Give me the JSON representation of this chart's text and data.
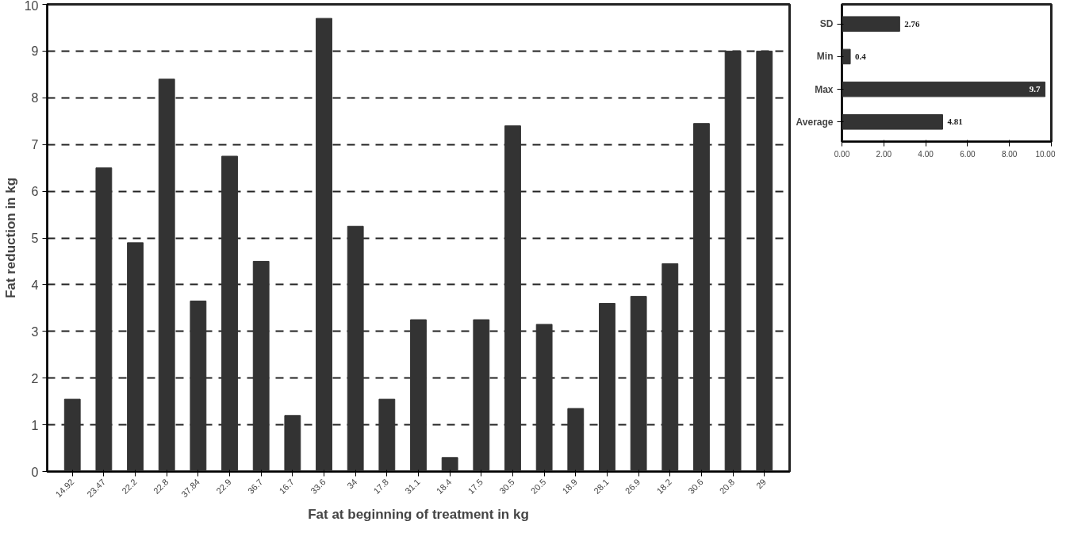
{
  "chart_data": [
    {
      "type": "bar",
      "xlabel": "Fat at beginning of treatment in kg",
      "ylabel": "Fat reduction in kg",
      "categories": [
        "14.92",
        "23.47",
        "22.2",
        "22.8",
        "37.84",
        "22.9",
        "36.7",
        "16.7",
        "33.6",
        "34",
        "17.8",
        "31.1",
        "18.4",
        "17.5",
        "30.5",
        "20.5",
        "18.9",
        "28.1",
        "26.9",
        "18.2",
        "30.6",
        "20.8",
        "29"
      ],
      "values": [
        1.55,
        6.5,
        4.9,
        8.4,
        3.65,
        6.75,
        4.5,
        1.2,
        9.7,
        5.25,
        1.55,
        3.25,
        0.3,
        3.25,
        7.4,
        3.15,
        1.35,
        3.6,
        3.75,
        4.45,
        7.45,
        9.0,
        9.0
      ],
      "color": "#333333",
      "ylim": [
        0,
        10
      ],
      "yticks": [
        0,
        1,
        2,
        3,
        4,
        5,
        6,
        7,
        8,
        9,
        10
      ],
      "grid": "y"
    },
    {
      "type": "bar",
      "orientation": "horizontal",
      "categories": [
        "SD",
        "Min",
        "Max",
        "Average"
      ],
      "values": [
        2.76,
        0.4,
        9.7,
        4.81
      ],
      "color": "#333333",
      "data_labels": true,
      "xlim": [
        0,
        10
      ],
      "xticks": [
        {
          "value": 0,
          "label": "0.00"
        },
        {
          "value": 2,
          "label": "2.00"
        },
        {
          "value": 4,
          "label": "4.00"
        },
        {
          "value": 6,
          "label": "6.00"
        },
        {
          "value": 8,
          "label": "8.00"
        },
        {
          "value": 10,
          "label": "10.00"
        }
      ]
    }
  ]
}
